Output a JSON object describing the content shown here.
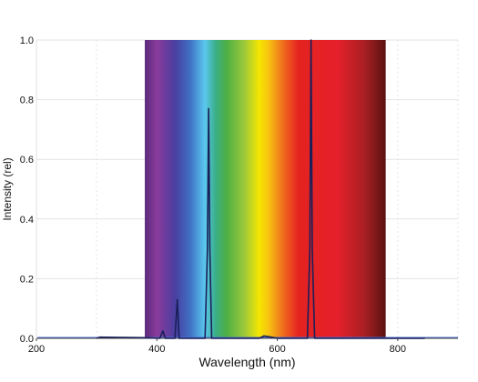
{
  "chart_data": {
    "type": "line",
    "title": "",
    "xlabel": "Wavelength (nm)",
    "ylabel": "Intensity (rel)",
    "xlim": [
      200,
      900
    ],
    "ylim": [
      0,
      1.0
    ],
    "x_ticks": [
      200,
      400,
      600,
      800
    ],
    "x_tick_labels": [
      "200",
      "400",
      "600",
      "800"
    ],
    "y_ticks": [
      0,
      0.2,
      0.4,
      0.6,
      0.8,
      1.0
    ],
    "y_tick_labels": [
      "0.0",
      "0.2",
      "0.4",
      "0.6",
      "0.8",
      "1.0"
    ],
    "grid": true,
    "legend": "none",
    "background_spectrum": {
      "x_range": [
        380,
        780
      ],
      "gradient": [
        {
          "x": 380,
          "color": "#5a2a7a"
        },
        {
          "x": 400,
          "color": "#8a3b9c"
        },
        {
          "x": 430,
          "color": "#4a3fa0"
        },
        {
          "x": 455,
          "color": "#3f6fc3"
        },
        {
          "x": 480,
          "color": "#5bc8ef"
        },
        {
          "x": 497,
          "color": "#3aaf8a"
        },
        {
          "x": 515,
          "color": "#4caf45"
        },
        {
          "x": 545,
          "color": "#9bc83b"
        },
        {
          "x": 570,
          "color": "#f5e600"
        },
        {
          "x": 585,
          "color": "#f7c510"
        },
        {
          "x": 610,
          "color": "#ef6b1e"
        },
        {
          "x": 635,
          "color": "#e52320"
        },
        {
          "x": 700,
          "color": "#e5202a"
        },
        {
          "x": 745,
          "color": "#a81f23"
        },
        {
          "x": 780,
          "color": "#5a1212"
        }
      ]
    },
    "series": [
      {
        "color": "#1a1f5a",
        "baseline": 0.0,
        "x_range": [
          300,
          845
        ],
        "points": [
          {
            "x": 300,
            "y": 0.0
          },
          {
            "x": 305,
            "y": 0.004
          },
          {
            "x": 350,
            "y": 0.003
          },
          {
            "x": 380,
            "y": 0.002
          },
          {
            "x": 405,
            "y": 0.0
          },
          {
            "x": 410,
            "y": 0.025
          },
          {
            "x": 414,
            "y": 0.0
          },
          {
            "x": 430,
            "y": 0.0
          },
          {
            "x": 434,
            "y": 0.13
          },
          {
            "x": 437,
            "y": 0.0
          },
          {
            "x": 480,
            "y": 0.0
          },
          {
            "x": 484,
            "y": 0.3
          },
          {
            "x": 486,
            "y": 0.77
          },
          {
            "x": 488,
            "y": 0.3
          },
          {
            "x": 491,
            "y": 0.0
          },
          {
            "x": 570,
            "y": 0.0
          },
          {
            "x": 578,
            "y": 0.008
          },
          {
            "x": 590,
            "y": 0.004
          },
          {
            "x": 600,
            "y": 0.0
          },
          {
            "x": 650,
            "y": 0.0
          },
          {
            "x": 654,
            "y": 0.3
          },
          {
            "x": 656,
            "y": 1.0
          },
          {
            "x": 658,
            "y": 0.3
          },
          {
            "x": 662,
            "y": 0.0
          },
          {
            "x": 845,
            "y": 0.0
          }
        ]
      }
    ]
  }
}
